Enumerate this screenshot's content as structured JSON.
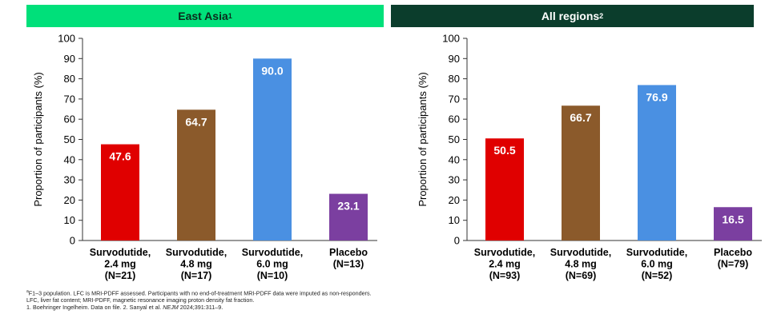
{
  "panels": [
    {
      "title": "East Asia",
      "title_sup": "1"
    },
    {
      "title": "All regions",
      "title_sup": "2"
    }
  ],
  "chart_data": [
    {
      "type": "bar",
      "title": "East Asia",
      "ylabel": "Proportion of participants (%)",
      "ylim": [
        0,
        100
      ],
      "yticks": [
        0,
        10,
        20,
        30,
        40,
        50,
        60,
        70,
        80,
        90,
        100
      ],
      "categories": [
        [
          "Survodutide,",
          "2.4 mg",
          "(N=21)"
        ],
        [
          "Survodutide,",
          "4.8 mg",
          "(N=17)"
        ],
        [
          "Survodutide,",
          "6.0 mg",
          "(N=10)"
        ],
        [
          "Placebo",
          "(N=13)"
        ]
      ],
      "values": [
        47.6,
        64.7,
        90.0,
        23.1
      ],
      "value_labels": [
        "47.6",
        "64.7",
        "90.0",
        "23.1"
      ],
      "colors": [
        "#e00000",
        "#8b5a2b",
        "#4a90e2",
        "#7b3fa0"
      ]
    },
    {
      "type": "bar",
      "title": "All regions",
      "ylabel": "Proportion of participants (%)",
      "ylim": [
        0,
        100
      ],
      "yticks": [
        0,
        10,
        20,
        30,
        40,
        50,
        60,
        70,
        80,
        90,
        100
      ],
      "categories": [
        [
          "Survodutide,",
          "2.4 mg",
          "(N=93)"
        ],
        [
          "Survodutide,",
          "4.8 mg",
          "(N=69)"
        ],
        [
          "Survodutide,",
          "6.0 mg",
          "(N=52)"
        ],
        [
          "Placebo",
          "(N=79)"
        ]
      ],
      "values": [
        50.5,
        66.7,
        76.9,
        16.5
      ],
      "value_labels": [
        "50.5",
        "66.7",
        "76.9",
        "16.5"
      ],
      "colors": [
        "#e00000",
        "#8b5a2b",
        "#4a90e2",
        "#7b3fa0"
      ]
    }
  ],
  "footnotes": {
    "line1_sup": "a",
    "line1": "F1–3 population. LFC is MRI-PDFF assessed. Participants with no end-of-treatment MRI-PDFF data were imputed as non-responders.",
    "line2": "LFC, liver fat content; MRI-PDFF, magnetic resonance imaging proton density fat fraction.",
    "line3_pre": "1. Boehringer Ingelheim. Data on file. 2. Sanyal et al. ",
    "line3_journal": "NEJM",
    "line3_post": " 2024;391:311–9."
  }
}
